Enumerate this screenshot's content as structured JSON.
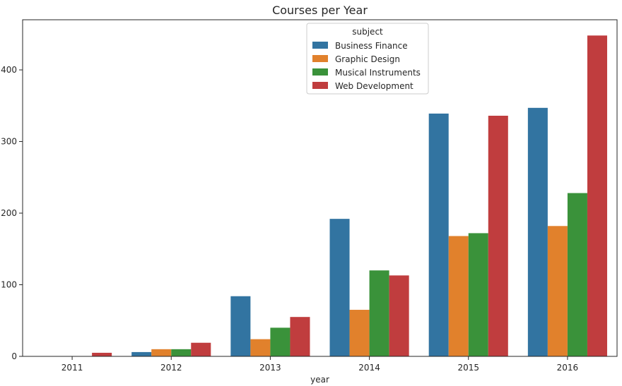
{
  "chart_data": {
    "type": "bar",
    "title": "Courses per Year",
    "xlabel": "year",
    "ylabel": "",
    "categories": [
      "2011",
      "2012",
      "2013",
      "2014",
      "2015",
      "2016"
    ],
    "ylim": [
      0,
      470
    ],
    "yticks": [
      0,
      100,
      200,
      300,
      400
    ],
    "legend": {
      "title": "subject",
      "position": "top-center"
    },
    "series": [
      {
        "name": "Business Finance",
        "color": "#3274a1",
        "values": [
          0,
          6,
          84,
          192,
          339,
          347
        ]
      },
      {
        "name": "Graphic Design",
        "color": "#e1812c",
        "values": [
          0,
          10,
          24,
          65,
          168,
          182
        ]
      },
      {
        "name": "Musical Instruments",
        "color": "#3a923a",
        "values": [
          0,
          10,
          40,
          120,
          172,
          228
        ]
      },
      {
        "name": "Web Development",
        "color": "#c03d3e",
        "values": [
          5,
          19,
          55,
          113,
          336,
          448
        ]
      }
    ],
    "grid": false
  }
}
